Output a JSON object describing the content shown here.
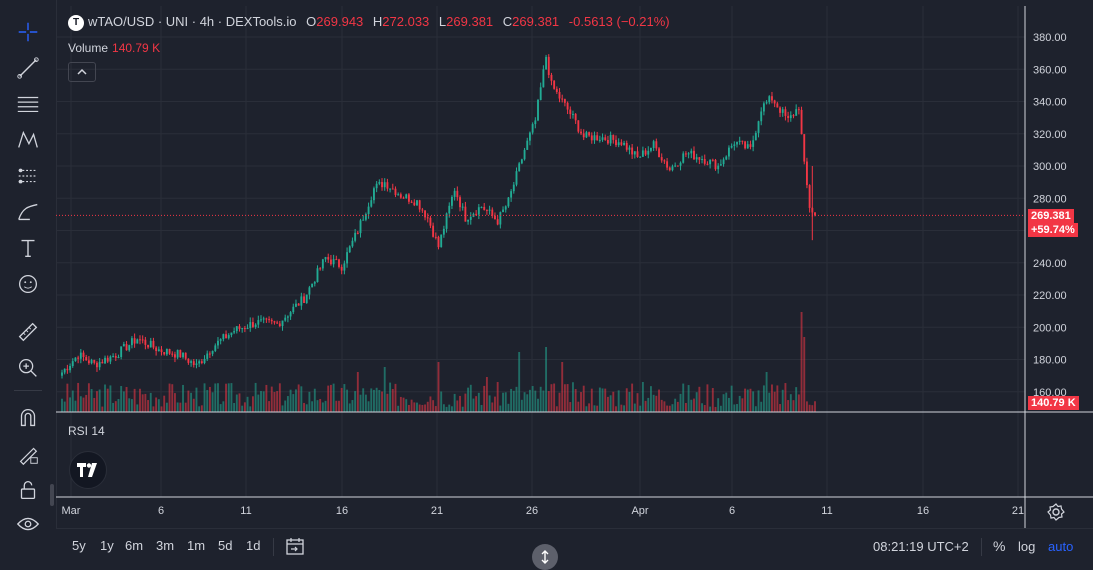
{
  "legend": {
    "badge": "T",
    "title": "wTAO/USD · UNI · 4h · DEXTools.io",
    "open_label": "O",
    "open": "269.943",
    "high_label": "H",
    "high": "272.033",
    "low_label": "L",
    "low": "269.381",
    "close_label": "C",
    "close": "269.381",
    "change": "-0.5613 (−0.21%)",
    "volume_label": "Volume",
    "volume_value": "140.79 K",
    "rsi_label": "RSI 14"
  },
  "price_tags": {
    "last_price": "269.381",
    "change_pct": "+59.74%",
    "volume": "140.79 K"
  },
  "toolbar_icons": [
    "crosshair-icon",
    "trend-line-icon",
    "fib-icon",
    "pattern-icon",
    "forecast-icon",
    "brush-icon",
    "text-icon",
    "emoji-icon",
    "ruler-icon",
    "zoom-icon",
    "magnet-icon",
    "lock-drawing-icon",
    "unlock-icon",
    "eye-icon"
  ],
  "bottom": {
    "ranges": [
      "5y",
      "1y",
      "6m",
      "3m",
      "1m",
      "5d",
      "1d"
    ],
    "clock": "08:21:19 UTC+2",
    "percent": "%",
    "log": "log",
    "auto": "auto"
  },
  "colors": {
    "up": "#22ab94",
    "down": "#f23645",
    "bg": "#1e222d",
    "grid": "#2a2e39",
    "accent": "#2962ff"
  },
  "chart_data": {
    "type": "candlestick",
    "y_axis": {
      "min": 140,
      "max": 390,
      "ticks": [
        "380.00",
        "360.00",
        "340.00",
        "320.00",
        "300.00",
        "280.00",
        "260.00",
        "240.00",
        "220.00",
        "200.00",
        "180.00",
        "160.00"
      ]
    },
    "x_ticks": [
      "Mar",
      "6",
      "11",
      "16",
      "21",
      "26",
      "Apr",
      "6",
      "11",
      "16",
      "21"
    ],
    "last_price": 269.381,
    "anchors": [
      {
        "i": 0,
        "p": 172
      },
      {
        "i": 6,
        "p": 183
      },
      {
        "i": 12,
        "p": 177
      },
      {
        "i": 20,
        "p": 183
      },
      {
        "i": 28,
        "p": 193
      },
      {
        "i": 36,
        "p": 186
      },
      {
        "i": 44,
        "p": 183
      },
      {
        "i": 50,
        "p": 176
      },
      {
        "i": 56,
        "p": 188
      },
      {
        "i": 64,
        "p": 198
      },
      {
        "i": 72,
        "p": 203
      },
      {
        "i": 80,
        "p": 202
      },
      {
        "i": 90,
        "p": 218
      },
      {
        "i": 98,
        "p": 243
      },
      {
        "i": 104,
        "p": 238
      },
      {
        "i": 110,
        "p": 260
      },
      {
        "i": 116,
        "p": 286
      },
      {
        "i": 120,
        "p": 290
      },
      {
        "i": 126,
        "p": 282
      },
      {
        "i": 132,
        "p": 278
      },
      {
        "i": 136,
        "p": 268
      },
      {
        "i": 140,
        "p": 250
      },
      {
        "i": 146,
        "p": 286
      },
      {
        "i": 150,
        "p": 268
      },
      {
        "i": 156,
        "p": 275
      },
      {
        "i": 162,
        "p": 266
      },
      {
        "i": 166,
        "p": 278
      },
      {
        "i": 172,
        "p": 310
      },
      {
        "i": 176,
        "p": 328
      },
      {
        "i": 180,
        "p": 368
      },
      {
        "i": 182,
        "p": 350
      },
      {
        "i": 186,
        "p": 340
      },
      {
        "i": 190,
        "p": 330
      },
      {
        "i": 194,
        "p": 318
      },
      {
        "i": 200,
        "p": 318
      },
      {
        "i": 208,
        "p": 315
      },
      {
        "i": 214,
        "p": 305
      },
      {
        "i": 220,
        "p": 313
      },
      {
        "i": 226,
        "p": 298
      },
      {
        "i": 232,
        "p": 308
      },
      {
        "i": 238,
        "p": 305
      },
      {
        "i": 244,
        "p": 300
      },
      {
        "i": 250,
        "p": 315
      },
      {
        "i": 256,
        "p": 310
      },
      {
        "i": 260,
        "p": 336
      },
      {
        "i": 264,
        "p": 342
      },
      {
        "i": 270,
        "p": 328
      },
      {
        "i": 274,
        "p": 337
      },
      {
        "i": 276,
        "p": 300
      },
      {
        "i": 278,
        "p": 275
      },
      {
        "i": 280,
        "p": 269.4
      }
    ],
    "volume_spikes": [
      {
        "i": 110,
        "v": 0.4
      },
      {
        "i": 120,
        "v": 0.45
      },
      {
        "i": 140,
        "v": 0.5
      },
      {
        "i": 158,
        "v": 0.35
      },
      {
        "i": 170,
        "v": 0.6
      },
      {
        "i": 180,
        "v": 0.65
      },
      {
        "i": 186,
        "v": 0.5
      },
      {
        "i": 216,
        "v": 0.3
      },
      {
        "i": 262,
        "v": 0.4
      },
      {
        "i": 275,
        "v": 1.0
      },
      {
        "i": 276,
        "v": 0.75
      }
    ]
  }
}
